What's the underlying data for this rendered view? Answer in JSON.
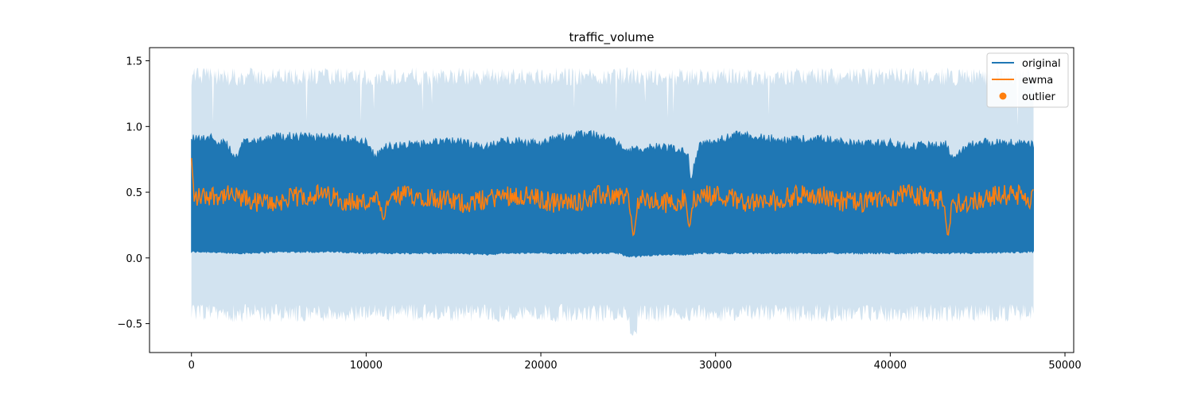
{
  "chart_data": {
    "type": "line",
    "title": "traffic_volume",
    "xlabel": "",
    "ylabel": "",
    "xlim": [
      -2400,
      50500
    ],
    "ylim": [
      -0.72,
      1.6
    ],
    "x_ticks": [
      0,
      10000,
      20000,
      30000,
      40000,
      50000
    ],
    "x_tick_labels": [
      "0",
      "10000",
      "20000",
      "30000",
      "40000",
      "50000"
    ],
    "y_ticks": [
      -0.5,
      0.0,
      0.5,
      1.0,
      1.5
    ],
    "y_tick_labels": [
      "−0.5",
      "0.0",
      "0.5",
      "1.0",
      "1.5"
    ],
    "grid": false,
    "legend": {
      "placement": "top-right"
    },
    "colors": {
      "original": "#1f77b4",
      "ewma": "#ff7f0e",
      "band": "#d2e3f0",
      "outlier": "#ff7f0e"
    },
    "series": [
      {
        "name": "original",
        "kind": "line",
        "x_range": [
          0,
          48200
        ],
        "summary_profile": {
          "x": [
            0,
            1000,
            2000,
            2500,
            3000,
            5000,
            8000,
            10000,
            10500,
            11000,
            13000,
            15000,
            17000,
            18000,
            20000,
            21000,
            23000,
            24500,
            25000,
            27000,
            28400,
            28600,
            29000,
            31000,
            34000,
            36000,
            38000,
            40000,
            41000,
            43300,
            43400,
            45000,
            48200
          ],
          "low": [
            0.04,
            0.04,
            0.03,
            0.03,
            0.03,
            0.04,
            0.04,
            0.03,
            0.03,
            0.03,
            0.03,
            0.03,
            0.02,
            0.03,
            0.03,
            0.03,
            0.03,
            0.03,
            0.0,
            0.02,
            0.02,
            0.02,
            0.03,
            0.03,
            0.03,
            0.03,
            0.03,
            0.03,
            0.03,
            0.03,
            0.03,
            0.03,
            0.04
          ],
          "high": [
            0.95,
            0.95,
            0.9,
            0.78,
            0.92,
            0.96,
            0.95,
            0.92,
            0.8,
            0.88,
            0.9,
            0.92,
            0.88,
            0.93,
            0.9,
            0.95,
            0.98,
            0.9,
            0.85,
            0.88,
            0.84,
            0.62,
            0.88,
            0.97,
            0.93,
            0.94,
            0.9,
            0.91,
            0.88,
            0.9,
            0.8,
            0.92,
            0.9
          ]
        }
      },
      {
        "name": "ewma",
        "kind": "line",
        "x_range": [
          0,
          48200
        ],
        "mean_level": 0.45,
        "dips": [
          {
            "x": 11000,
            "y": 0.29
          },
          {
            "x": 25300,
            "y": 0.17
          },
          {
            "x": 28500,
            "y": 0.24
          },
          {
            "x": 43300,
            "y": 0.17
          }
        ],
        "start_value": 0.76
      },
      {
        "name": "outlier",
        "kind": "scatter",
        "points": []
      }
    ],
    "band": {
      "description_values": "confidence band around ewma",
      "upper_typical": 1.38,
      "lower_typical": -0.42,
      "upper_max": 1.45,
      "lower_min": -0.6
    }
  }
}
